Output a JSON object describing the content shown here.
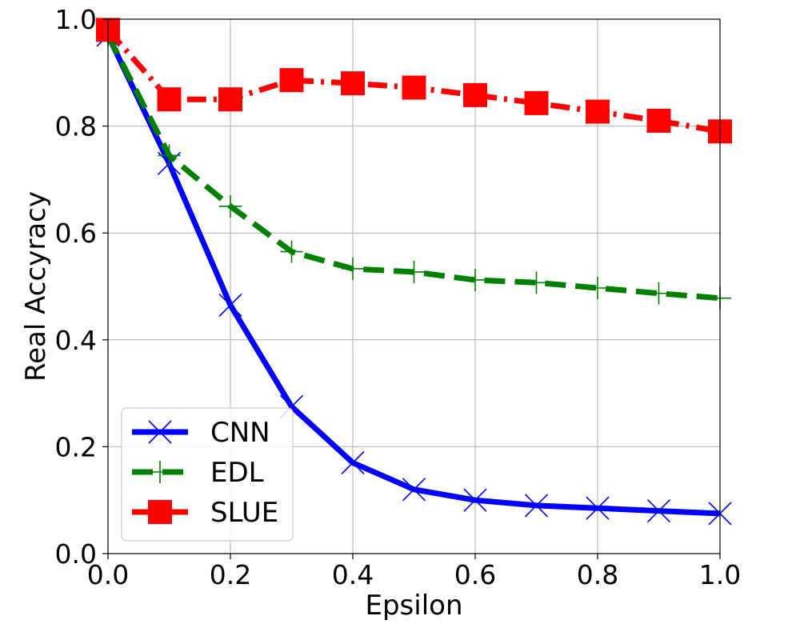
{
  "chart_data": {
    "type": "line",
    "title": "",
    "xlabel": "Epsilon",
    "ylabel": "Real Accyracy",
    "xlim": [
      0.0,
      1.0
    ],
    "ylim": [
      0.0,
      1.0
    ],
    "x_ticks": [
      "0.0",
      "0.2",
      "0.4",
      "0.6",
      "0.8",
      "1.0"
    ],
    "y_ticks": [
      "0.0",
      "0.2",
      "0.4",
      "0.6",
      "0.8",
      "1.0"
    ],
    "grid": true,
    "legend_position": "lower-left",
    "x": [
      0.0,
      0.1,
      0.2,
      0.3,
      0.4,
      0.5,
      0.6,
      0.7,
      0.8,
      0.9,
      1.0
    ],
    "series": [
      {
        "name": "CNN",
        "color": "#0000ff",
        "linestyle": "solid",
        "marker": "x",
        "values": [
          0.97,
          0.73,
          0.465,
          0.275,
          0.17,
          0.12,
          0.1,
          0.09,
          0.085,
          0.08,
          0.075
        ]
      },
      {
        "name": "EDL",
        "color": "#008000",
        "linestyle": "dashed",
        "marker": "+",
        "values": [
          0.97,
          0.745,
          0.65,
          0.565,
          0.533,
          0.527,
          0.512,
          0.507,
          0.497,
          0.487,
          0.478
        ]
      },
      {
        "name": "SLUE",
        "color": "#ff0000",
        "linestyle": "dashdot",
        "marker": "square",
        "values": [
          0.98,
          0.85,
          0.85,
          0.886,
          0.88,
          0.872,
          0.858,
          0.843,
          0.827,
          0.81,
          0.79
        ]
      }
    ]
  }
}
